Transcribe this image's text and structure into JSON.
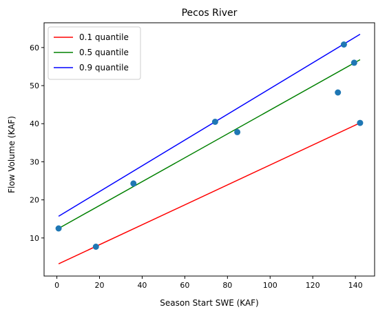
{
  "chart_data": {
    "type": "scatter",
    "title": "Pecos River",
    "xlabel": "Season Start SWE (KAF)",
    "ylabel": "Flow Volume (KAF)",
    "xlim": [
      -6,
      149
    ],
    "ylim": [
      0,
      66.5
    ],
    "xticks": [
      0,
      20,
      40,
      60,
      80,
      100,
      120,
      140
    ],
    "yticks": [
      10,
      20,
      30,
      40,
      50,
      60
    ],
    "grid": false,
    "legend_position": "top-left",
    "points": {
      "color": "#1f77b4",
      "x": [
        0.8,
        18.3,
        35.9,
        74.2,
        84.6,
        131.8,
        134.6,
        139.4,
        142.2
      ],
      "y": [
        12.5,
        7.7,
        24.3,
        40.5,
        37.8,
        48.2,
        60.8,
        56.0,
        40.2
      ]
    },
    "series": [
      {
        "name": "0.1 quantile",
        "color": "#ff0000",
        "x": [
          0.8,
          142.2
        ],
        "y": [
          3.2,
          40.2
        ]
      },
      {
        "name": "0.5 quantile",
        "color": "#008000",
        "x": [
          0.8,
          142.2
        ],
        "y": [
          12.5,
          56.8
        ]
      },
      {
        "name": "0.9 quantile",
        "color": "#0000ff",
        "x": [
          0.8,
          142.2
        ],
        "y": [
          15.7,
          63.5
        ]
      }
    ]
  }
}
